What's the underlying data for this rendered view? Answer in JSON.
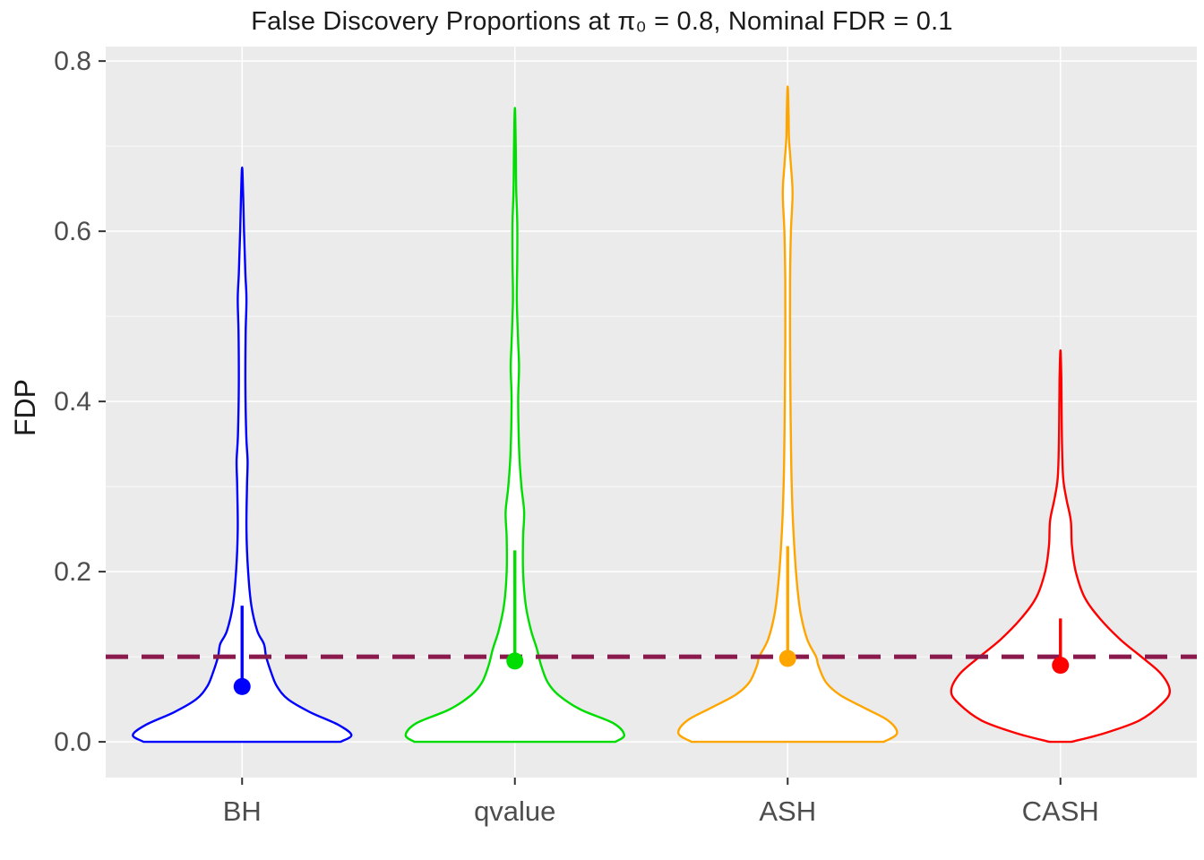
{
  "chart_data": {
    "type": "violin",
    "title": "False Discovery Proportions at π₀ = 0.8, Nominal FDR = 0.1",
    "xlabel": "",
    "ylabel": "FDP",
    "categories": [
      "BH",
      "qvalue",
      "ASH",
      "CASH"
    ],
    "y_ticks": [
      0.0,
      0.2,
      0.4,
      0.6,
      0.8
    ],
    "y_tick_labels": [
      "0.0",
      "0.2",
      "0.4",
      "0.6",
      "0.8"
    ],
    "y_minor_ticks": [
      0.1,
      0.3,
      0.5,
      0.7
    ],
    "ylim": [
      -0.042,
      0.817
    ],
    "grid": true,
    "legend": "none",
    "panel_bg": "#EBEBEB",
    "grid_color": "#FFFFFF",
    "axis_text_color": "#4D4D4D",
    "tick_mark_color": "#333333",
    "title_color": "#1A1A1A",
    "violin_fill": "#FFFFFF",
    "reference_line": {
      "y": 0.1,
      "color": "#8B1A4C",
      "style": "dashed"
    },
    "series": [
      {
        "name": "BH",
        "color": "#0000FF",
        "mean": 0.065,
        "segment": [
          0.065,
          0.16
        ],
        "max_fdp": 0.675,
        "profile": [
          [
            0.0,
            0.9
          ],
          [
            0.008,
            1.0
          ],
          [
            0.02,
            0.88
          ],
          [
            0.035,
            0.62
          ],
          [
            0.05,
            0.42
          ],
          [
            0.065,
            0.32
          ],
          [
            0.08,
            0.27
          ],
          [
            0.1,
            0.22
          ],
          [
            0.115,
            0.2
          ],
          [
            0.13,
            0.14
          ],
          [
            0.16,
            0.085
          ],
          [
            0.2,
            0.055
          ],
          [
            0.25,
            0.04
          ],
          [
            0.3,
            0.045
          ],
          [
            0.33,
            0.05
          ],
          [
            0.36,
            0.038
          ],
          [
            0.42,
            0.03
          ],
          [
            0.48,
            0.032
          ],
          [
            0.52,
            0.04
          ],
          [
            0.55,
            0.03
          ],
          [
            0.6,
            0.018
          ],
          [
            0.64,
            0.01
          ],
          [
            0.675,
            0.0
          ]
        ]
      },
      {
        "name": "qvalue",
        "color": "#00DD00",
        "mean": 0.095,
        "segment": [
          0.095,
          0.225
        ],
        "max_fdp": 0.745,
        "profile": [
          [
            0.0,
            0.92
          ],
          [
            0.008,
            1.0
          ],
          [
            0.022,
            0.9
          ],
          [
            0.038,
            0.6
          ],
          [
            0.055,
            0.4
          ],
          [
            0.07,
            0.3
          ],
          [
            0.09,
            0.24
          ],
          [
            0.11,
            0.2
          ],
          [
            0.13,
            0.15
          ],
          [
            0.16,
            0.1
          ],
          [
            0.2,
            0.075
          ],
          [
            0.24,
            0.075
          ],
          [
            0.27,
            0.085
          ],
          [
            0.3,
            0.06
          ],
          [
            0.34,
            0.04
          ],
          [
            0.4,
            0.03
          ],
          [
            0.44,
            0.038
          ],
          [
            0.47,
            0.03
          ],
          [
            0.52,
            0.018
          ],
          [
            0.57,
            0.022
          ],
          [
            0.61,
            0.022
          ],
          [
            0.65,
            0.012
          ],
          [
            0.7,
            0.008
          ],
          [
            0.745,
            0.0
          ]
        ]
      },
      {
        "name": "ASH",
        "color": "#FFA500",
        "mean": 0.098,
        "segment": [
          0.098,
          0.23
        ],
        "max_fdp": 0.77,
        "profile": [
          [
            0.0,
            0.88
          ],
          [
            0.01,
            1.0
          ],
          [
            0.025,
            0.92
          ],
          [
            0.04,
            0.7
          ],
          [
            0.055,
            0.48
          ],
          [
            0.07,
            0.35
          ],
          [
            0.09,
            0.28
          ],
          [
            0.1,
            0.26
          ],
          [
            0.12,
            0.18
          ],
          [
            0.15,
            0.12
          ],
          [
            0.18,
            0.09
          ],
          [
            0.22,
            0.065
          ],
          [
            0.27,
            0.045
          ],
          [
            0.33,
            0.032
          ],
          [
            0.4,
            0.026
          ],
          [
            0.47,
            0.022
          ],
          [
            0.54,
            0.022
          ],
          [
            0.6,
            0.03
          ],
          [
            0.645,
            0.045
          ],
          [
            0.68,
            0.028
          ],
          [
            0.71,
            0.012
          ],
          [
            0.74,
            0.008
          ],
          [
            0.77,
            0.0
          ]
        ]
      },
      {
        "name": "CASH",
        "color": "#FF0000",
        "mean": 0.09,
        "segment": [
          0.09,
          0.145
        ],
        "max_fdp": 0.46,
        "profile": [
          [
            0.0,
            0.1
          ],
          [
            0.01,
            0.4
          ],
          [
            0.025,
            0.72
          ],
          [
            0.045,
            0.93
          ],
          [
            0.06,
            1.0
          ],
          [
            0.08,
            0.92
          ],
          [
            0.1,
            0.74
          ],
          [
            0.12,
            0.55
          ],
          [
            0.145,
            0.36
          ],
          [
            0.17,
            0.22
          ],
          [
            0.2,
            0.14
          ],
          [
            0.23,
            0.105
          ],
          [
            0.26,
            0.095
          ],
          [
            0.285,
            0.055
          ],
          [
            0.31,
            0.025
          ],
          [
            0.35,
            0.014
          ],
          [
            0.4,
            0.01
          ],
          [
            0.43,
            0.008
          ],
          [
            0.46,
            0.0
          ]
        ]
      }
    ]
  }
}
